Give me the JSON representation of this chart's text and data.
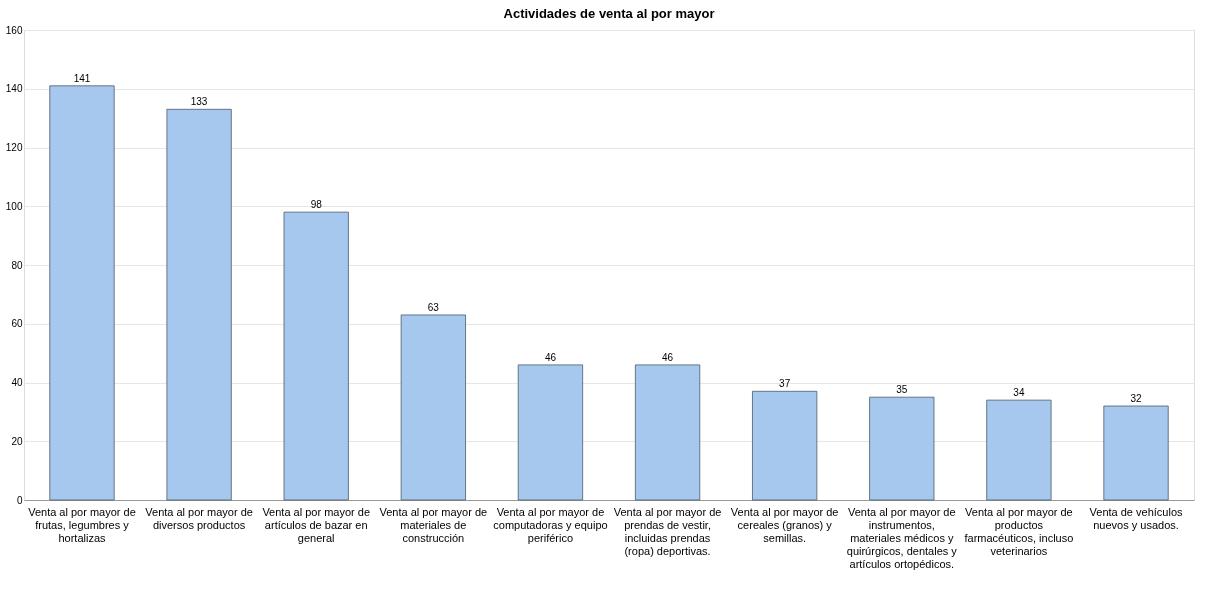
{
  "chart_data": {
    "type": "bar",
    "title": "Actividades de venta al por mayor",
    "categories": [
      "Venta al por mayor de frutas, legumbres y hortalizas",
      "Venta al por mayor de diversos productos",
      "Venta al por mayor de artículos de bazar en general",
      "Venta al por mayor de materiales de construcción",
      "Venta al por mayor de computadoras y equipo periférico",
      "Venta al por mayor de prendas de vestir, incluidas prendas (ropa) deportivas.",
      "Venta al por mayor de cereales (granos) y semillas.",
      "Venta al por mayor de instrumentos, materiales médicos y quirúrgicos, dentales y artículos ortopédicos.",
      "Venta al por mayor de productos farmacéuticos, incluso veterinarios",
      "Venta de vehículos nuevos y usados."
    ],
    "values": [
      141,
      133,
      98,
      63,
      46,
      46,
      37,
      35,
      34,
      32
    ],
    "color": "#a6c8ee",
    "ylim": [
      0,
      160
    ],
    "yticks": [
      0,
      20,
      40,
      60,
      80,
      100,
      120,
      140,
      160
    ],
    "grid": "y",
    "data_labels": true
  }
}
